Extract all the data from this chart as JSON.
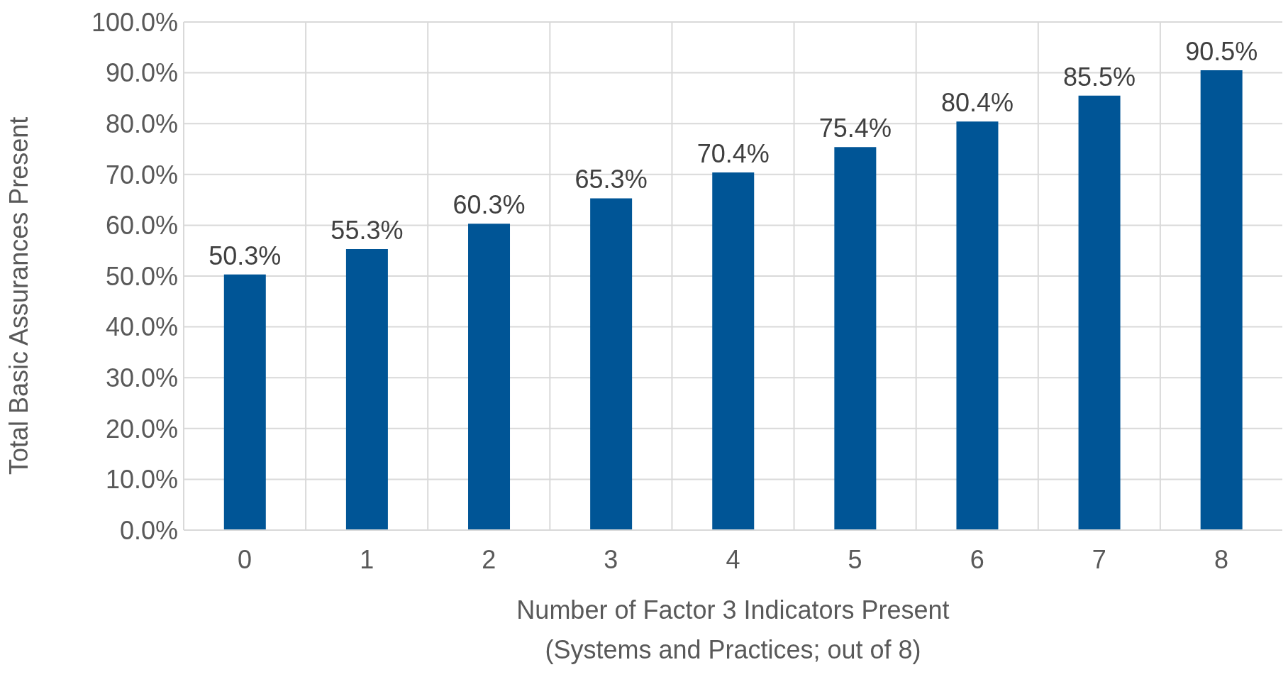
{
  "chart_data": {
    "type": "bar",
    "xlabel": "Number of Factor 3 Indicators Present\n(Systems and Practices; out of 8)",
    "ylabel": "Total Basic Assurances Present",
    "categories": [
      "0",
      "1",
      "2",
      "3",
      "4",
      "5",
      "6",
      "7",
      "8"
    ],
    "values": [
      50.3,
      55.3,
      60.3,
      65.3,
      70.4,
      75.4,
      80.4,
      85.5,
      90.5
    ],
    "value_labels": [
      "50.3%",
      "55.3%",
      "60.3%",
      "65.3%",
      "70.4%",
      "75.4%",
      "80.4%",
      "85.5%",
      "90.5%"
    ],
    "color": "#005596",
    "ylim": [
      0,
      100
    ],
    "yticks": [
      {
        "value": 0,
        "label": "0.0%"
      },
      {
        "value": 10,
        "label": "10.0%"
      },
      {
        "value": 20,
        "label": "20.0%"
      },
      {
        "value": 30,
        "label": "30.0%"
      },
      {
        "value": 40,
        "label": "40.0%"
      },
      {
        "value": 50,
        "label": "50.0%"
      },
      {
        "value": 60,
        "label": "60.0%"
      },
      {
        "value": 70,
        "label": "70.0%"
      },
      {
        "value": 80,
        "label": "80.0%"
      },
      {
        "value": 90,
        "label": "90.0%"
      },
      {
        "value": 100,
        "label": "100.0%"
      }
    ],
    "grid": true
  }
}
